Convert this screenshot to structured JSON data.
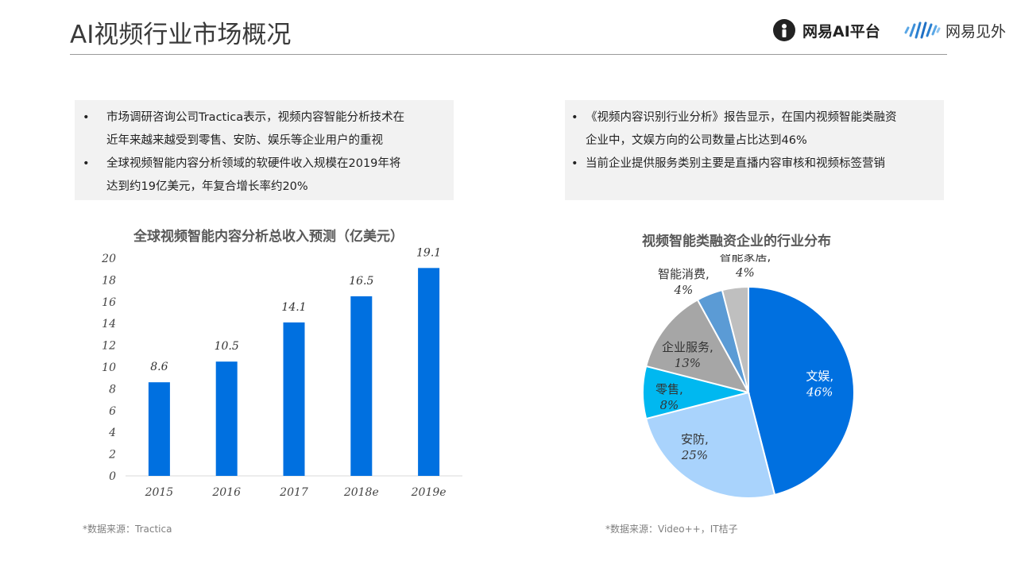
{
  "header": {
    "title": "AI视频行业市场概况",
    "logo_left_text": "网易AI平台",
    "logo_right_text": "网易见外"
  },
  "left_box": {
    "bullets": [
      {
        "lines": [
          "市场调研咨询公司Tractica表示，视频内容智能分析技术在",
          "近年来越来越受到零售、安防、娱乐等企业用户的重视"
        ]
      },
      {
        "lines": [
          "全球视频智能内容分析领域的软硬件收入规模在2019年将",
          "达到约19亿美元，年复合增长率约20%"
        ]
      }
    ]
  },
  "right_box": {
    "bullets": [
      {
        "lines": [
          "《视频内容识别行业分析》报告显示，在国内视频智能类融资",
          "企业中，文娱方向的公司数量占比达到46%"
        ]
      },
      {
        "lines": [
          "当前企业提供服务类别主要是直播内容审核和视频标签营销"
        ]
      }
    ]
  },
  "bullet_symbol": "•",
  "chart_data": [
    {
      "type": "bar",
      "title": "全球视频智能内容分析总收入预测（亿美元）",
      "categories": [
        "2015",
        "2016",
        "2017",
        "2018e",
        "2019e"
      ],
      "values": [
        8.6,
        10.5,
        14.1,
        16.5,
        19.1
      ],
      "value_labels": [
        "8.6",
        "10.5",
        "14.1",
        "16.5",
        "19.1"
      ],
      "ylim": [
        0,
        20
      ],
      "yticks": [
        "0",
        "2",
        "4",
        "6",
        "8",
        "10",
        "12",
        "14",
        "16",
        "18",
        "20"
      ],
      "color": "#0070E0",
      "grid": false,
      "legend": false
    },
    {
      "type": "pie",
      "title": "视频智能类融资企业的行业分布",
      "slices": [
        {
          "label": "文娱",
          "pct": "46%",
          "value": 46,
          "color": "#0070E0"
        },
        {
          "label": "安防",
          "pct": "25%",
          "value": 25,
          "color": "#A9D3FC"
        },
        {
          "label": "零售",
          "pct": "8%",
          "value": 8,
          "color": "#00B8F0"
        },
        {
          "label": "企业服务",
          "pct": "13%",
          "value": 13,
          "color": "#A6A6A6"
        },
        {
          "label": "智能消费",
          "pct": "4%",
          "value": 4,
          "color": "#5B9BD5"
        },
        {
          "label": "智能家居",
          "pct": "4%",
          "value": 4,
          "color": "#BFBFBF"
        }
      ],
      "legend": false
    }
  ],
  "sources": {
    "left": "*数据来源：Tractica",
    "right": "*数据来源：Video++，IT桔子"
  }
}
